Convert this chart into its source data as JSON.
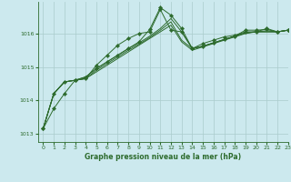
{
  "title": "Graphe pression niveau de la mer (hPa)",
  "background_color": "#cce9ee",
  "grid_color": "#aacccc",
  "line_color": "#2d6b2d",
  "xlim": [
    -0.5,
    23
  ],
  "ylim": [
    1012.75,
    1016.95
  ],
  "yticks": [
    1013,
    1014,
    1015,
    1016
  ],
  "xticks": [
    0,
    1,
    2,
    3,
    4,
    5,
    6,
    7,
    8,
    9,
    10,
    11,
    12,
    13,
    14,
    15,
    16,
    17,
    18,
    19,
    20,
    21,
    22,
    23
  ],
  "series": [
    {
      "y": [
        1013.15,
        1013.75,
        1014.2,
        1014.6,
        1014.65,
        1015.05,
        1015.35,
        1015.65,
        1015.85,
        1016.0,
        1016.05,
        1016.72,
        1016.1,
        1016.05,
        1015.55,
        1015.7,
        1015.8,
        1015.9,
        1015.95,
        1016.05,
        1016.05,
        1016.15,
        1016.05,
        1016.1
      ],
      "marker": true
    },
    {
      "y": [
        1013.15,
        1014.2,
        1014.55,
        1014.6,
        1014.65,
        1014.85,
        1015.05,
        1015.25,
        1015.45,
        1015.65,
        1015.85,
        1016.05,
        1016.25,
        1015.75,
        1015.5,
        1015.6,
        1015.7,
        1015.8,
        1015.9,
        1016.0,
        1016.05,
        1016.05,
        1016.05,
        1016.1
      ],
      "marker": false
    },
    {
      "y": [
        1013.15,
        1014.2,
        1014.55,
        1014.6,
        1014.65,
        1014.9,
        1015.1,
        1015.3,
        1015.5,
        1015.68,
        1015.88,
        1016.1,
        1016.35,
        1015.8,
        1015.55,
        1015.62,
        1015.72,
        1015.82,
        1015.92,
        1016.02,
        1016.05,
        1016.05,
        1016.05,
        1016.1
      ],
      "marker": false
    },
    {
      "y": [
        1013.15,
        1014.2,
        1014.55,
        1014.6,
        1014.7,
        1014.95,
        1015.15,
        1015.35,
        1015.55,
        1015.72,
        1015.92,
        1016.15,
        1016.45,
        1016.05,
        1015.55,
        1015.62,
        1015.72,
        1015.82,
        1015.92,
        1016.02,
        1016.05,
        1016.08,
        1016.05,
        1016.1
      ],
      "marker": false
    },
    {
      "y": [
        1013.15,
        1014.2,
        1014.55,
        1014.6,
        1014.7,
        1014.95,
        1015.15,
        1015.35,
        1015.55,
        1015.75,
        1016.12,
        1016.78,
        1016.55,
        1016.15,
        1015.55,
        1015.62,
        1015.72,
        1015.82,
        1015.92,
        1016.1,
        1016.1,
        1016.12,
        1016.05,
        1016.1
      ],
      "marker": true
    }
  ]
}
